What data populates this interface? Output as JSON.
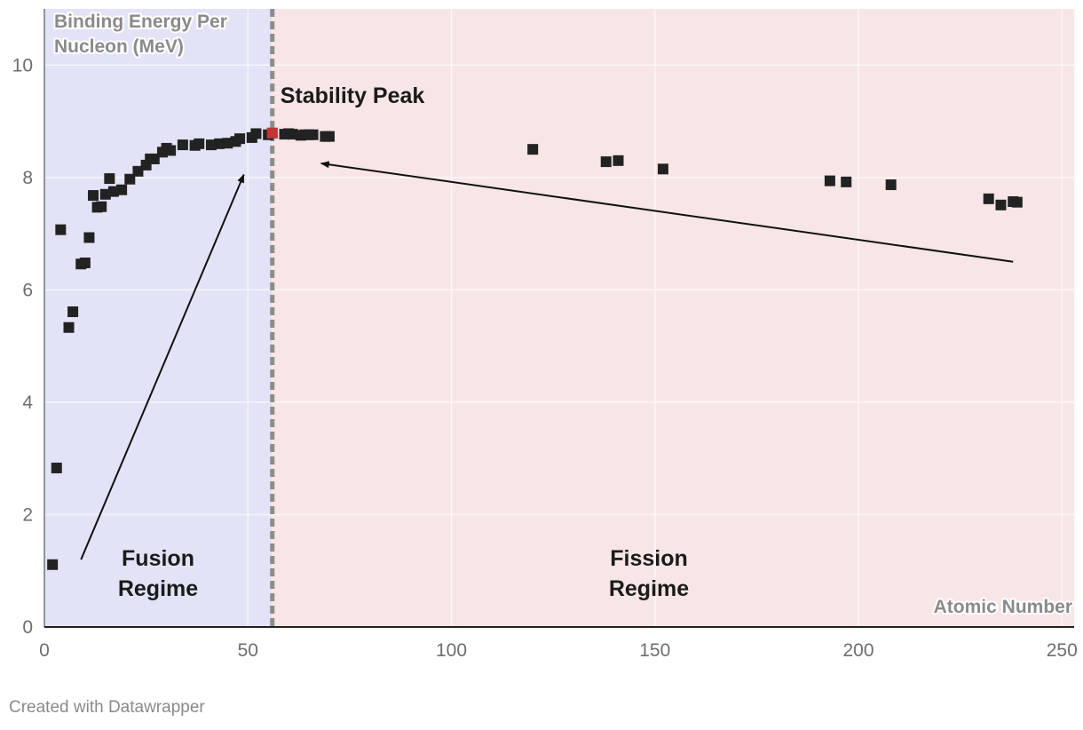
{
  "chart_data": {
    "type": "scatter",
    "title": "",
    "xlabel": "Atomic Number",
    "ylabel": "Binding Energy Per Nucleon (MeV)",
    "ylabel_lines": [
      "Binding Energy Per",
      "Nucleon (MeV)"
    ],
    "xlim": [
      0,
      253
    ],
    "ylim": [
      0,
      11
    ],
    "x_ticks": [
      0,
      50,
      100,
      150,
      200,
      250
    ],
    "y_ticks": [
      0,
      2,
      4,
      6,
      8,
      10
    ],
    "grid": true,
    "regions": [
      {
        "name": "Fusion Regime",
        "label_lines": [
          "Fusion",
          "Regime"
        ],
        "x_from": 0,
        "x_to": 56,
        "color": "#e3e3f7"
      },
      {
        "name": "Fission Regime",
        "label_lines": [
          "Fission",
          "Regime"
        ],
        "x_from": 56,
        "x_to": 253,
        "color": "#f8e6e6"
      }
    ],
    "divider": {
      "x": 56,
      "label": "Stability Peak",
      "color": "#8c8c8c"
    },
    "annotations": [
      {
        "label": "Fusion Regime",
        "x": 28,
        "y": 1.1
      },
      {
        "label": "Fission Regime",
        "x": 150,
        "y": 1.1
      },
      {
        "label": "Stability Peak",
        "x": 58,
        "y": 9.4
      }
    ],
    "arrows": [
      {
        "from": [
          9,
          1.2
        ],
        "to": [
          49,
          8.05
        ]
      },
      {
        "from": [
          238,
          6.5
        ],
        "to": [
          68,
          8.25
        ]
      }
    ],
    "series": [
      {
        "name": "Nuclides",
        "color": "#222222",
        "highlight_color": "#e03a3a",
        "points": [
          [
            2,
            1.11
          ],
          [
            3,
            2.83
          ],
          [
            4,
            7.07
          ],
          [
            6,
            5.33
          ],
          [
            7,
            5.61
          ],
          [
            9,
            6.46
          ],
          [
            10,
            6.48
          ],
          [
            11,
            6.93
          ],
          [
            12,
            7.68
          ],
          [
            13,
            7.47
          ],
          [
            14,
            7.48
          ],
          [
            15,
            7.7
          ],
          [
            16,
            7.98
          ],
          [
            17,
            7.75
          ],
          [
            19,
            7.78
          ],
          [
            21,
            7.97
          ],
          [
            23,
            8.11
          ],
          [
            25,
            8.22
          ],
          [
            26,
            8.33
          ],
          [
            27,
            8.33
          ],
          [
            29,
            8.45
          ],
          [
            30,
            8.52
          ],
          [
            31,
            8.48
          ],
          [
            34,
            8.58
          ],
          [
            37,
            8.57
          ],
          [
            38,
            8.6
          ],
          [
            41,
            8.58
          ],
          [
            43,
            8.6
          ],
          [
            45,
            8.61
          ],
          [
            47,
            8.64
          ],
          [
            48,
            8.69
          ],
          [
            51,
            8.71
          ],
          [
            52,
            8.78
          ],
          [
            55,
            8.76
          ],
          [
            56,
            8.79
          ],
          [
            59,
            8.77
          ],
          [
            60,
            8.78
          ],
          [
            61,
            8.77
          ],
          [
            63,
            8.75
          ],
          [
            64,
            8.76
          ],
          [
            65,
            8.76
          ],
          [
            66,
            8.76
          ],
          [
            69,
            8.73
          ],
          [
            70,
            8.73
          ],
          [
            120,
            8.5
          ],
          [
            138,
            8.28
          ],
          [
            141,
            8.3
          ],
          [
            152,
            8.15
          ],
          [
            193,
            7.94
          ],
          [
            197,
            7.92
          ],
          [
            208,
            7.87
          ],
          [
            232,
            7.62
          ],
          [
            235,
            7.51
          ],
          [
            238,
            7.57
          ],
          [
            239,
            7.56
          ]
        ],
        "highlight_point": [
          56,
          8.79
        ]
      }
    ]
  },
  "footer": {
    "credit": "Created with Datawrapper"
  }
}
